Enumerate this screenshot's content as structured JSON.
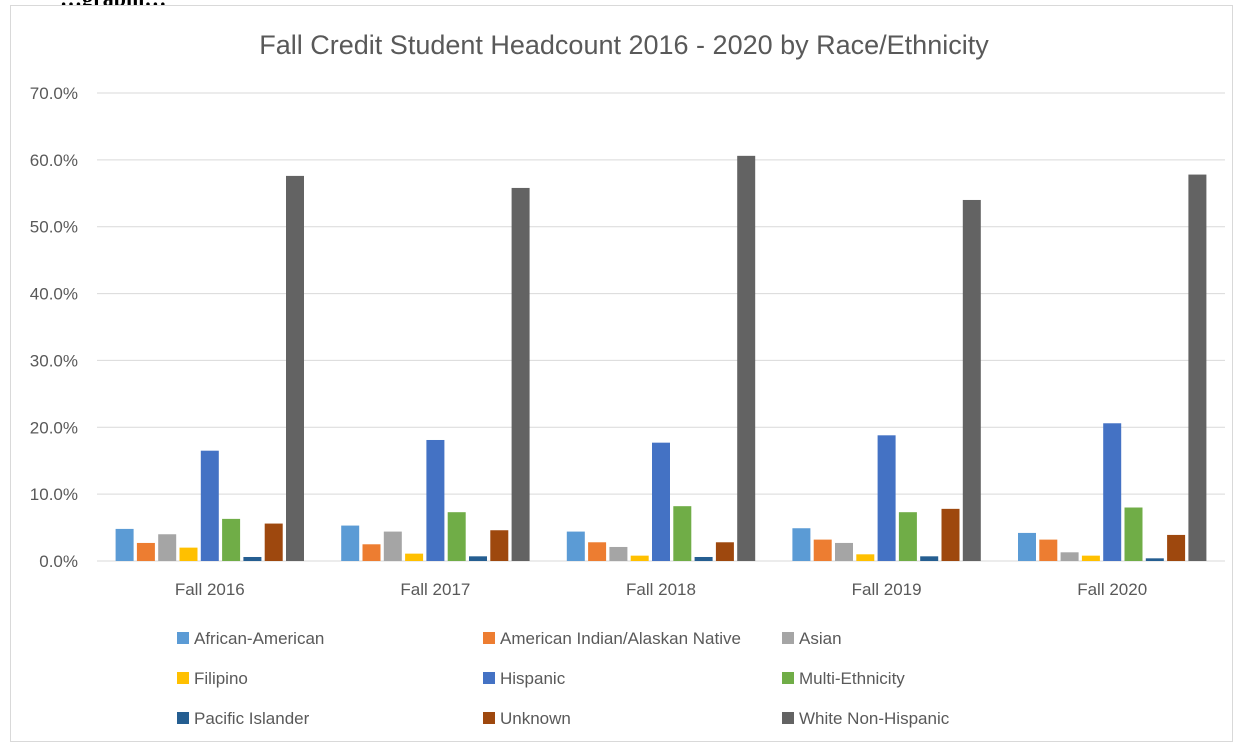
{
  "page_heading": "…graphi…",
  "chart_data": {
    "type": "bar",
    "title": "Fall Credit Student Headcount 2016 - 2020 by Race/Ethnicity",
    "xlabel": "",
    "ylabel": "",
    "categories": [
      "Fall 2016",
      "Fall 2017",
      "Fall 2018",
      "Fall 2019",
      "Fall 2020"
    ],
    "ylim": [
      0,
      70
    ],
    "yticks": [
      "0.0%",
      "10.0%",
      "20.0%",
      "30.0%",
      "40.0%",
      "50.0%",
      "60.0%",
      "70.0%"
    ],
    "grid": true,
    "legend_position": "bottom",
    "series": [
      {
        "name": "African-American",
        "color": "#5b9bd5",
        "values": [
          4.8,
          5.3,
          4.4,
          4.9,
          4.2
        ]
      },
      {
        "name": "American Indian/Alaskan Native",
        "color": "#ed7d31",
        "values": [
          2.7,
          2.5,
          2.8,
          3.2,
          3.2
        ]
      },
      {
        "name": "Asian",
        "color": "#a5a5a5",
        "values": [
          4.0,
          4.4,
          2.1,
          2.7,
          1.3
        ]
      },
      {
        "name": "Filipino",
        "color": "#ffc000",
        "values": [
          2.0,
          1.1,
          0.8,
          1.0,
          0.8
        ]
      },
      {
        "name": "Hispanic",
        "color": "#4472c4",
        "values": [
          16.5,
          18.1,
          17.7,
          18.8,
          20.6
        ]
      },
      {
        "name": "Multi-Ethnicity",
        "color": "#70ad47",
        "values": [
          6.3,
          7.3,
          8.2,
          7.3,
          8.0
        ]
      },
      {
        "name": "Pacific Islander",
        "color": "#255e91",
        "values": [
          0.6,
          0.7,
          0.6,
          0.7,
          0.4
        ]
      },
      {
        "name": "Unknown",
        "color": "#9e480e",
        "values": [
          5.6,
          4.6,
          2.8,
          7.8,
          3.9
        ]
      },
      {
        "name": "White Non-Hispanic",
        "color": "#636363",
        "values": [
          57.6,
          55.8,
          60.6,
          54.0,
          57.8
        ]
      }
    ]
  }
}
